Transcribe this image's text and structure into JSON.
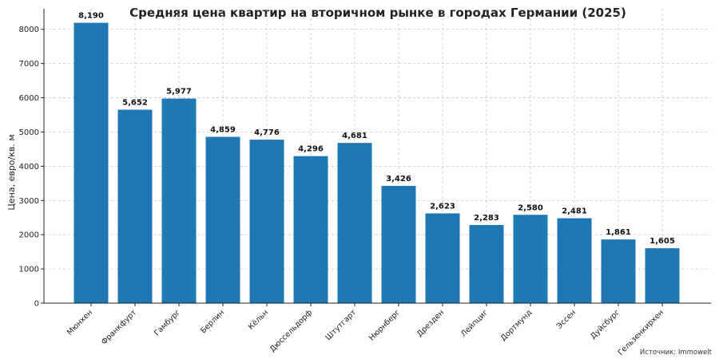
{
  "chart_data": {
    "type": "bar",
    "title": "Средняя цена квартир на вторичном рынке в городах Германии (2025)",
    "xlabel": "",
    "ylabel": "Цена, евро/кв. м",
    "ylim": [
      0,
      8600
    ],
    "yticks": [
      0,
      1000,
      2000,
      3000,
      4000,
      5000,
      6000,
      7000,
      8000
    ],
    "grid": true,
    "categories": [
      "Мюнхен",
      "Франкфурт",
      "Гамбург",
      "Берлин",
      "Кёльн",
      "Дюссельдорф",
      "Штутгарт",
      "Нюрнберг",
      "Дрезден",
      "Лейпциг",
      "Дортмунд",
      "Эссен",
      "Дуйсбург",
      "Гельзенкирхен"
    ],
    "values": [
      8190,
      5652,
      5977,
      4859,
      4776,
      4296,
      4681,
      3426,
      2623,
      2283,
      2580,
      2481,
      1861,
      1605
    ],
    "data_labels": [
      "8,190",
      "5,652",
      "5,977",
      "4,859",
      "4,776",
      "4,296",
      "4,681",
      "3,426",
      "2,623",
      "2,283",
      "2,580",
      "2,481",
      "1,861",
      "1,605"
    ],
    "bar_color": "#1f77b4",
    "source": "Источник: Immowelt"
  }
}
